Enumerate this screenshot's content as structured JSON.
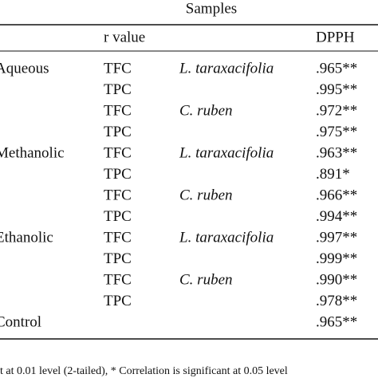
{
  "table": {
    "header": {
      "group": "Samples",
      "columns": [
        "r value",
        "DPPH"
      ]
    },
    "rows": [
      [
        "Aqueous",
        "TFC",
        "L. taraxacifolia",
        ".965**"
      ],
      [
        null,
        "TPC",
        null,
        ".995**"
      ],
      [
        null,
        "TFC",
        "C. ruben",
        ".972**"
      ],
      [
        null,
        "TPC",
        null,
        ".975**"
      ],
      [
        "Methanolic",
        "TFC",
        "L. taraxacifolia",
        ".963**"
      ],
      [
        null,
        "TPC",
        null,
        ".891*"
      ],
      [
        null,
        "TFC",
        "C. ruben",
        ".966**"
      ],
      [
        null,
        "TPC",
        null,
        ".994**"
      ],
      [
        "Ethanolic",
        "TFC",
        "L. taraxacifolia",
        ".997**"
      ],
      [
        null,
        "TPC",
        null,
        ".999**"
      ],
      [
        null,
        "TFC",
        "C. ruben",
        ".990**"
      ],
      [
        null,
        "TPC",
        null,
        ".978**"
      ],
      [
        "Control",
        null,
        null,
        ".965**"
      ]
    ],
    "footnote": "t at 0.01 level (2-tailed), * Correlation is significant at 0.05 level"
  }
}
